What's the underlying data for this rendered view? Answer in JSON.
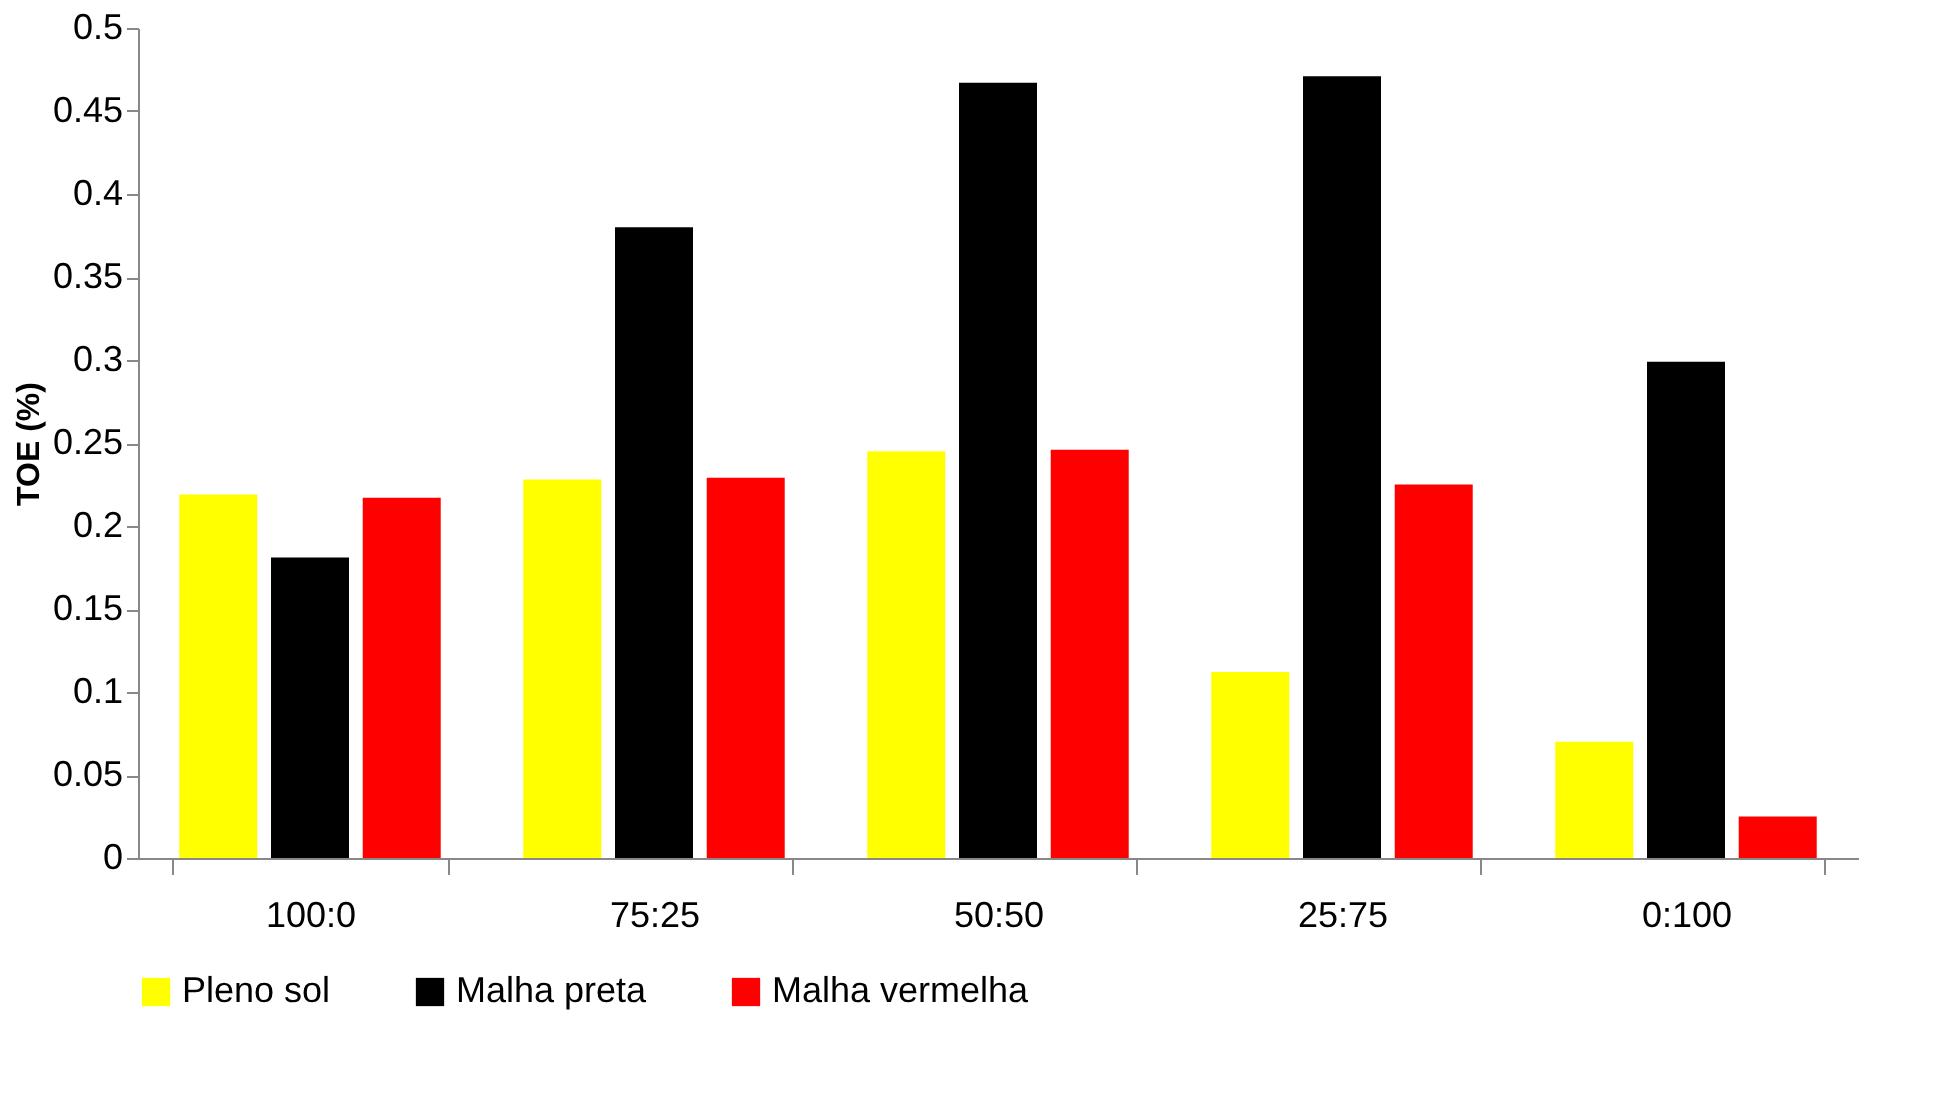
{
  "chart_data": {
    "type": "bar",
    "ylabel": "TOE (%)",
    "categories": [
      "100:0",
      "75:25",
      "50:50",
      "25:75",
      "0:100"
    ],
    "series": [
      {
        "name": "Pleno sol",
        "color": "#ffff00",
        "values": [
          0.219,
          0.228,
          0.245,
          0.112,
          0.07
        ]
      },
      {
        "name": "Malha preta",
        "color": "#000000",
        "values": [
          0.181,
          0.38,
          0.467,
          0.471,
          0.299
        ]
      },
      {
        "name": "Malha vermelha",
        "color": "#ff0000",
        "values": [
          0.217,
          0.229,
          0.246,
          0.225,
          0.025
        ]
      }
    ],
    "ylim": [
      0,
      0.5
    ],
    "yticks": [
      0,
      0.05,
      0.1,
      0.15,
      0.2,
      0.25,
      0.3,
      0.35,
      0.4,
      0.45,
      0.5
    ],
    "grid": false,
    "legend": "bottom"
  }
}
